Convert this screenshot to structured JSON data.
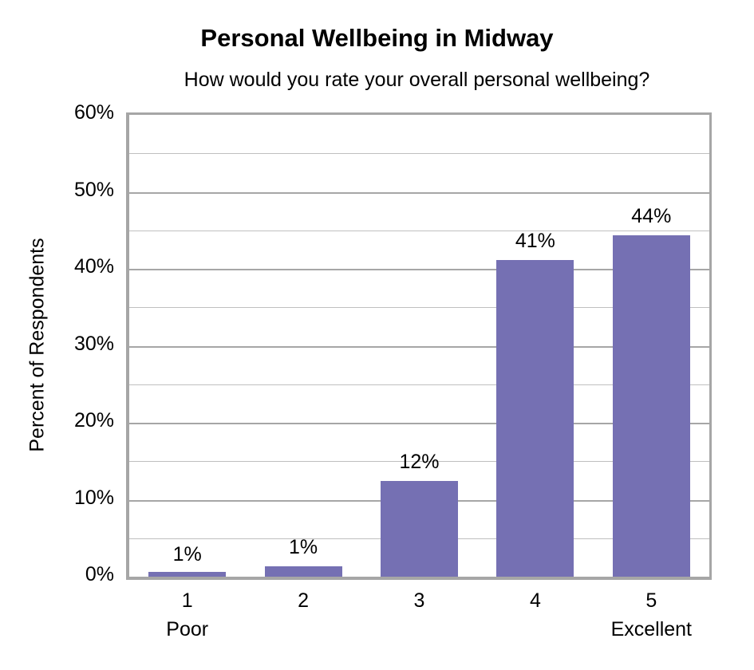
{
  "chart_data": {
    "type": "bar",
    "title": "Personal Wellbeing in Midway",
    "subtitle": "How would you rate your overall personal wellbeing?",
    "xlabel": "",
    "ylabel": "Percent of Respondents",
    "categories": [
      "1",
      "2",
      "3",
      "4",
      "5"
    ],
    "category_sublabels": [
      "Poor",
      "",
      "",
      "",
      "Excellent"
    ],
    "values": [
      0.6,
      1.3,
      12.4,
      41.1,
      44.4
    ],
    "data_labels": [
      "1%",
      "1%",
      "12%",
      "41%",
      "44%"
    ],
    "yticks": [
      "0%",
      "10%",
      "20%",
      "30%",
      "40%",
      "50%",
      "60%"
    ],
    "ylim": [
      0,
      60
    ],
    "grid": true,
    "legend": "none",
    "bar_color": "#7570b3"
  }
}
